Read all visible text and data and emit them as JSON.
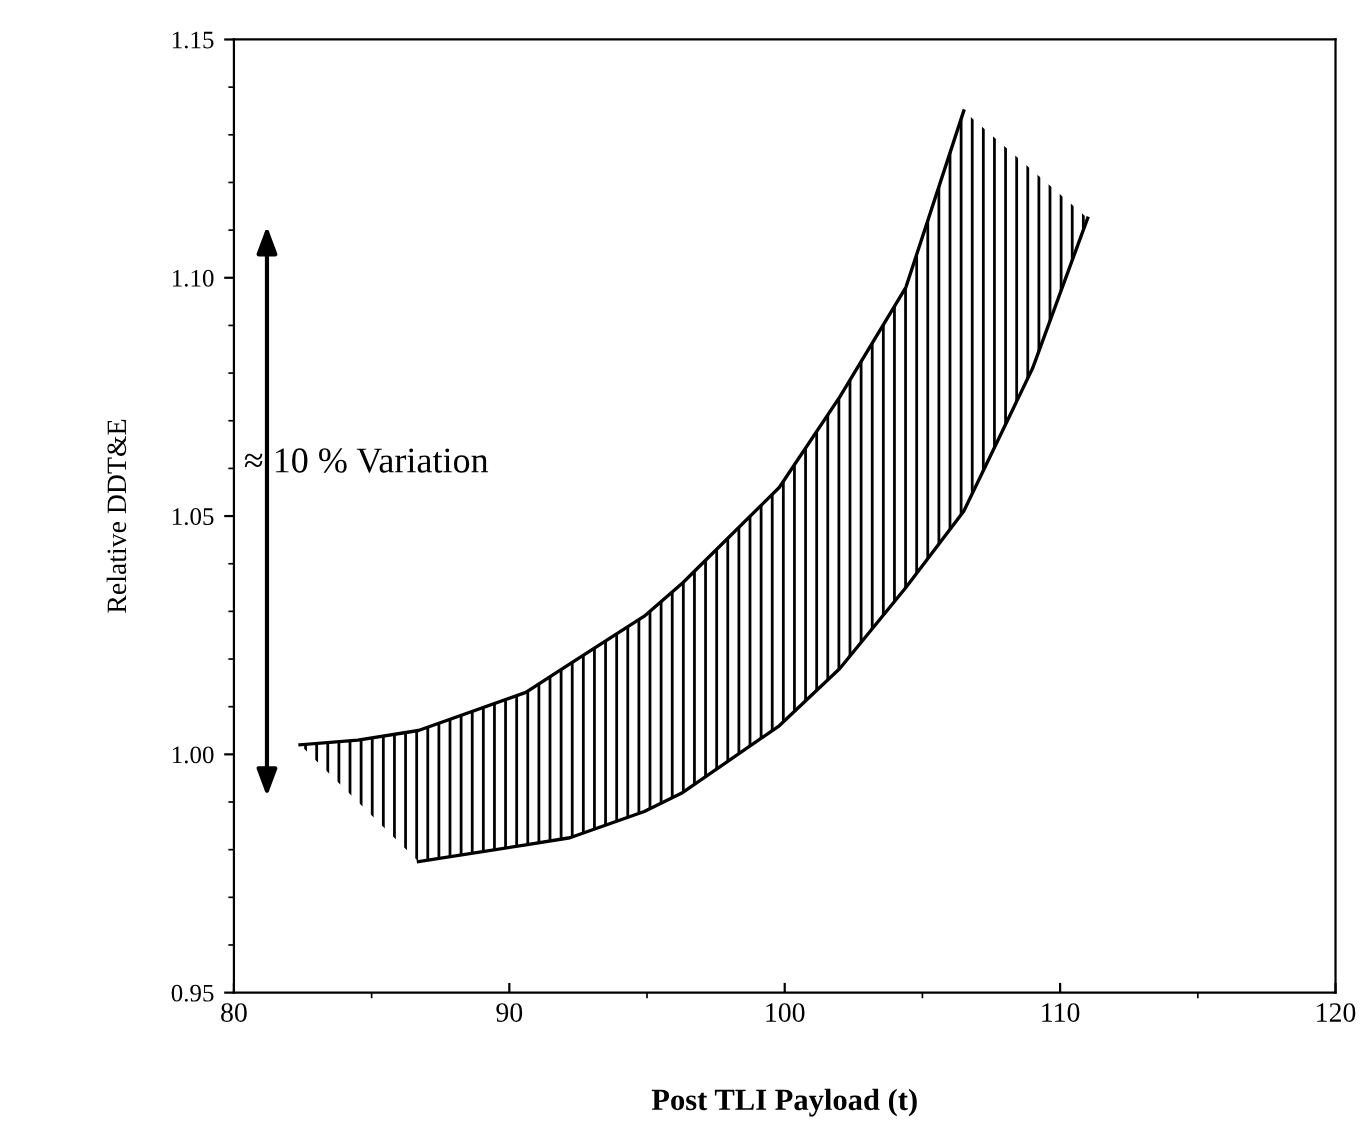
{
  "chart_data": {
    "type": "line",
    "xlabel": "Post TLI Payload (t)",
    "ylabel": "Relative DDT&E",
    "annotations": [
      "≈ 10 % Variation"
    ],
    "series": [
      {
        "color": "#000000",
        "x": [
          82.4,
          84.5,
          86.7,
          90.6,
          92.2,
          94.9,
          96.3,
          99.8,
          102,
          104.4,
          106.5
        ],
        "values": [
          1.002,
          1.003,
          1.005,
          1.013,
          1.019,
          1.029,
          1.036,
          1.056,
          1.075,
          1.098,
          1.135
        ]
      },
      {
        "color": "#000000",
        "x": [
          86.7,
          90.6,
          92.2,
          94.9,
          96.3,
          99.8,
          102,
          104.4,
          106.5,
          109,
          111
        ],
        "values": [
          0.9775,
          0.981,
          0.9825,
          0.988,
          0.992,
          1.006,
          1.018,
          1.035,
          1.051,
          1.081,
          1.1125
        ]
      }
    ],
    "xlim": [
      80,
      120
    ],
    "xticks": [
      80,
      90,
      100,
      110,
      120
    ],
    "ylim": [
      0.95,
      1.15
    ],
    "yticks": [
      {
        "value": 0.95,
        "label": "0.95"
      },
      {
        "value": 1.0,
        "label": "1.00"
      },
      {
        "value": 1.05,
        "label": "1.05"
      },
      {
        "value": 1.1,
        "label": "1.10"
      },
      {
        "value": 1.15,
        "label": "1.15"
      }
    ],
    "grid": false,
    "legend": false
  }
}
